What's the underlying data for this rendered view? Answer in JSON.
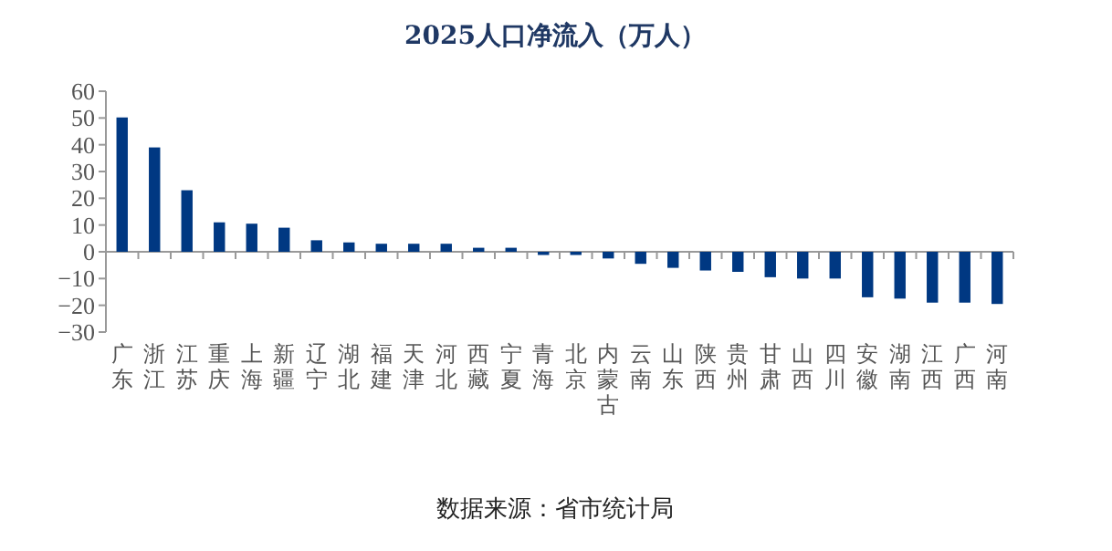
{
  "chart_data": {
    "type": "bar",
    "title": "2025人口净流入（万人）",
    "categories": [
      "广东",
      "浙江",
      "江苏",
      "重庆",
      "上海",
      "新疆",
      "辽宁",
      "湖北",
      "福建",
      "天津",
      "河北",
      "西藏",
      "宁夏",
      "青海",
      "北京",
      "内蒙古",
      "云南",
      "山东",
      "陕西",
      "贵州",
      "甘肃",
      "山西",
      "四川",
      "安徽",
      "湖南",
      "江西",
      "广西",
      "河南"
    ],
    "values": [
      50.2,
      39,
      23,
      11,
      10.5,
      9,
      4.3,
      3.5,
      3,
      3,
      3,
      1.5,
      1.5,
      -1.2,
      -1.2,
      -2.5,
      -4.5,
      -6,
      -7,
      -7.5,
      -9.5,
      -10,
      -10,
      -17,
      -17.5,
      -19,
      -19,
      -19.5
    ],
    "color": "#003882",
    "ylim": [
      -30,
      60
    ],
    "yticks": [
      -30,
      -20,
      -10,
      0,
      10,
      20,
      30,
      40,
      50,
      60
    ],
    "annotations": [
      "数据来源：省市统计局"
    ]
  }
}
